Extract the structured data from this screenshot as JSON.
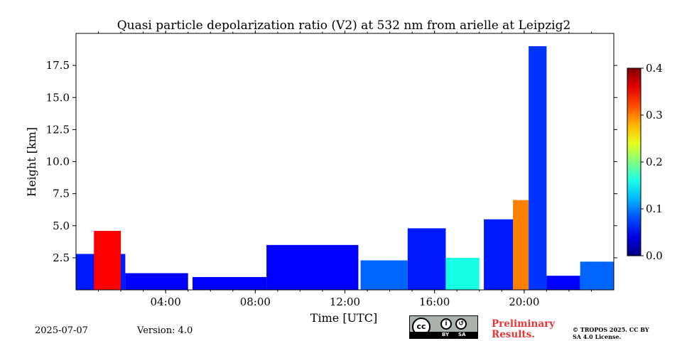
{
  "chart_data": {
    "type": "heatmap",
    "title": "Quasi particle depolarization ratio (V2) at 532 nm from arielle at Leipzig2",
    "xlabel": "Time [UTC]",
    "ylabel": "Height [km]",
    "xlim": [
      0,
      24
    ],
    "ylim": [
      0,
      20
    ],
    "x_ticks": [
      4,
      8,
      12,
      16,
      20
    ],
    "x_tick_labels": [
      "04:00",
      "08:00",
      "12:00",
      "16:00",
      "20:00"
    ],
    "y_ticks": [
      2.5,
      5.0,
      7.5,
      10.0,
      12.5,
      15.0,
      17.5
    ],
    "y_tick_labels": [
      "2.5",
      "5.0",
      "7.5",
      "10.0",
      "12.5",
      "15.0",
      "17.5"
    ],
    "colorbar": {
      "range": [
        0.0,
        0.4
      ],
      "ticks": [
        0.0,
        0.1,
        0.2,
        0.3,
        0.4
      ],
      "tick_labels": [
        "0.0",
        "0.1",
        "0.2",
        "0.3",
        "0.4"
      ],
      "colormap": "jet",
      "placement": "right"
    },
    "layers": [
      {
        "x0": 0.0,
        "x1": 2.2,
        "top": 2.8,
        "value": 0.06
      },
      {
        "x0": 0.8,
        "x1": 2.0,
        "top": 4.6,
        "value": 0.35
      },
      {
        "x0": 2.2,
        "x1": 5.0,
        "top": 1.3,
        "value": 0.05
      },
      {
        "x0": 5.2,
        "x1": 8.5,
        "top": 1.0,
        "value": 0.05
      },
      {
        "x0": 8.5,
        "x1": 12.6,
        "top": 3.5,
        "value": 0.05
      },
      {
        "x0": 12.7,
        "x1": 14.8,
        "top": 2.3,
        "value": 0.09
      },
      {
        "x0": 14.8,
        "x1": 16.5,
        "top": 4.8,
        "value": 0.06
      },
      {
        "x0": 16.5,
        "x1": 18.0,
        "top": 2.5,
        "value": 0.16
      },
      {
        "x0": 18.2,
        "x1": 20.0,
        "top": 5.5,
        "value": 0.06
      },
      {
        "x0": 19.5,
        "x1": 20.2,
        "top": 7.0,
        "value": 0.3
      },
      {
        "x0": 20.2,
        "x1": 21.0,
        "top": 19.0,
        "value": 0.07
      },
      {
        "x0": 21.0,
        "x1": 22.5,
        "top": 1.1,
        "value": 0.05
      },
      {
        "x0": 22.5,
        "x1": 24.0,
        "top": 2.2,
        "value": 0.09
      }
    ]
  },
  "footer": {
    "date": "2025-07-07",
    "version": "Version: 4.0",
    "preliminary": "Preliminary Results.",
    "copyright": "© TROPOS 2025. CC BY SA 4.0 License.",
    "license_badge": {
      "cc": "cc",
      "by": "BY",
      "sa": "SA"
    }
  },
  "colors": {
    "low": "#0020ff",
    "mid": "#00c8ff",
    "high": "#ff2000",
    "preliminary": "#e8353a"
  }
}
